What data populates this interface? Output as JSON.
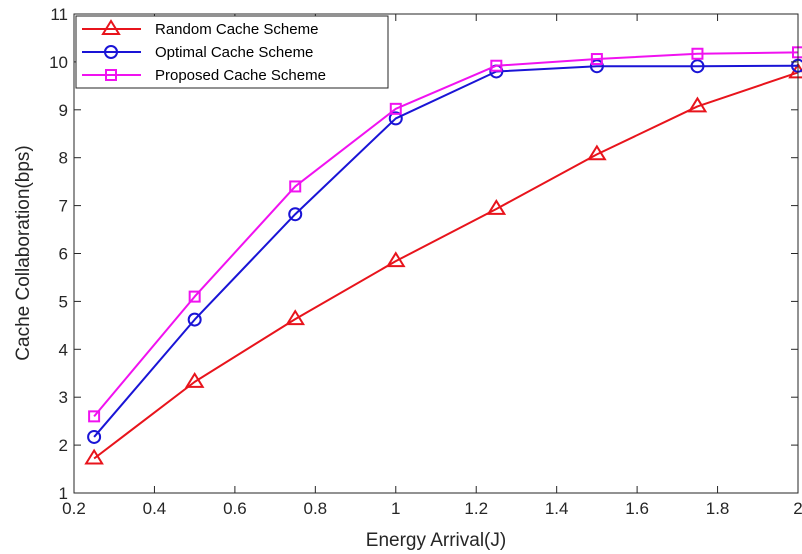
{
  "chart_data": {
    "type": "line",
    "title": "",
    "xlabel": "Energy Arrival(J)",
    "ylabel": "Cache Collaboration(bps)",
    "xlim": [
      0.2,
      2
    ],
    "ylim": [
      1,
      11
    ],
    "xticks": [
      0.2,
      0.4,
      0.6,
      0.8,
      1,
      1.2,
      1.4,
      1.6,
      1.8,
      2
    ],
    "xtick_labels": [
      "0.2",
      "0.4",
      "0.6",
      "0.8",
      "1",
      "1.2",
      "1.4",
      "1.6",
      "1.8",
      "2"
    ],
    "yticks": [
      1,
      2,
      3,
      4,
      5,
      6,
      7,
      8,
      9,
      10,
      11
    ],
    "ytick_labels": [
      "1",
      "2",
      "3",
      "4",
      "5",
      "6",
      "7",
      "8",
      "9",
      "10",
      "11"
    ],
    "grid": false,
    "legend_position": "top-left",
    "x": [
      0.25,
      0.5,
      0.75,
      1.0,
      1.25,
      1.5,
      1.75,
      2.0
    ],
    "series": [
      {
        "name": "Random Cache Scheme",
        "color": "#e8141c",
        "marker": "triangle",
        "values": [
          1.72,
          3.32,
          4.63,
          5.84,
          6.93,
          8.07,
          9.07,
          9.78
        ]
      },
      {
        "name": "Optimal Cache Scheme",
        "color": "#1a14d6",
        "marker": "circle",
        "values": [
          2.17,
          4.62,
          6.82,
          8.82,
          9.8,
          9.91,
          9.91,
          9.92
        ]
      },
      {
        "name": "Proposed Cache Scheme",
        "color": "#f012f0",
        "marker": "square",
        "values": [
          2.6,
          5.1,
          7.4,
          9.02,
          9.92,
          10.06,
          10.17,
          10.2
        ]
      }
    ]
  }
}
